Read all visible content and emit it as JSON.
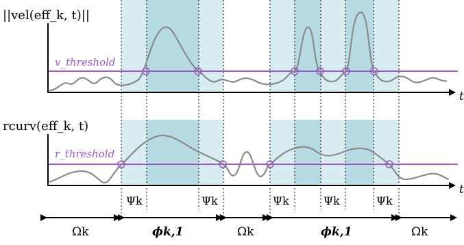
{
  "top_plot": {
    "y_label": "||vel(eff_k, t)||",
    "threshold_label": "v_threshold",
    "t_label": "t"
  },
  "bottom_plot": {
    "y_label": "rcurv(eff_k, t)",
    "threshold_label": "r_threshold",
    "t_label": "t"
  },
  "psi_labels": [
    "Ψk",
    "Ψk",
    "Ψk",
    "Ψk",
    "Ψk"
  ],
  "omega_labels": [
    "Ωk",
    "Ωk",
    "Ωk"
  ],
  "phi_labels": [
    "ϕk,1",
    "ϕk,1"
  ],
  "colors": {
    "light_region": "#d8ecf1",
    "dark_region": "#b7dbe3",
    "threshold_line": "#9b59c9",
    "curve": "#8a8a8a",
    "axis": "#000000"
  }
}
